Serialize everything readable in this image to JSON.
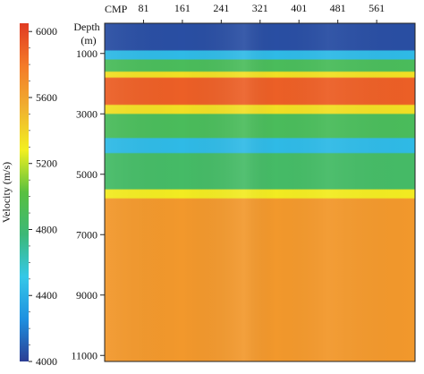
{
  "chart_data": {
    "type": "heatmap",
    "title": "",
    "x_axis": {
      "label": "CMP",
      "ticks": [
        81,
        161,
        241,
        321,
        401,
        481,
        561
      ],
      "range": [
        1,
        640
      ],
      "position": "top"
    },
    "y_axis": {
      "label_line1": "Depth",
      "label_line2": "(m)",
      "ticks": [
        1000,
        3000,
        5000,
        7000,
        9000,
        11000
      ],
      "range": [
        0,
        11200
      ],
      "inverted": true
    },
    "colorbar": {
      "label": "Velocity (m/s)",
      "ticks": [
        4000,
        4400,
        4800,
        5200,
        5600,
        6000
      ],
      "range": [
        4000,
        6050
      ],
      "colors": [
        "#2c3e94",
        "#1e90e0",
        "#35c8e8",
        "#3cb878",
        "#58c040",
        "#f2f020",
        "#f0b030",
        "#f47a28",
        "#e03a22"
      ]
    },
    "layers": [
      {
        "depth_top": 0,
        "depth_bottom": 900,
        "velocity": 4050
      },
      {
        "depth_top": 900,
        "depth_bottom": 1200,
        "velocity": 4450
      },
      {
        "depth_top": 1200,
        "depth_bottom": 1600,
        "velocity": 4900
      },
      {
        "depth_top": 1600,
        "depth_bottom": 1800,
        "velocity": 5350
      },
      {
        "depth_top": 1800,
        "depth_bottom": 2700,
        "velocity": 5900
      },
      {
        "depth_top": 2700,
        "depth_bottom": 3000,
        "velocity": 5350
      },
      {
        "depth_top": 3000,
        "depth_bottom": 3800,
        "velocity": 4900
      },
      {
        "depth_top": 3800,
        "depth_bottom": 4300,
        "velocity": 4450
      },
      {
        "depth_top": 4300,
        "depth_bottom": 5500,
        "velocity": 4850
      },
      {
        "depth_top": 5500,
        "depth_bottom": 5800,
        "velocity": 5300
      },
      {
        "depth_top": 5800,
        "depth_bottom": 11200,
        "velocity": 5650
      }
    ]
  }
}
